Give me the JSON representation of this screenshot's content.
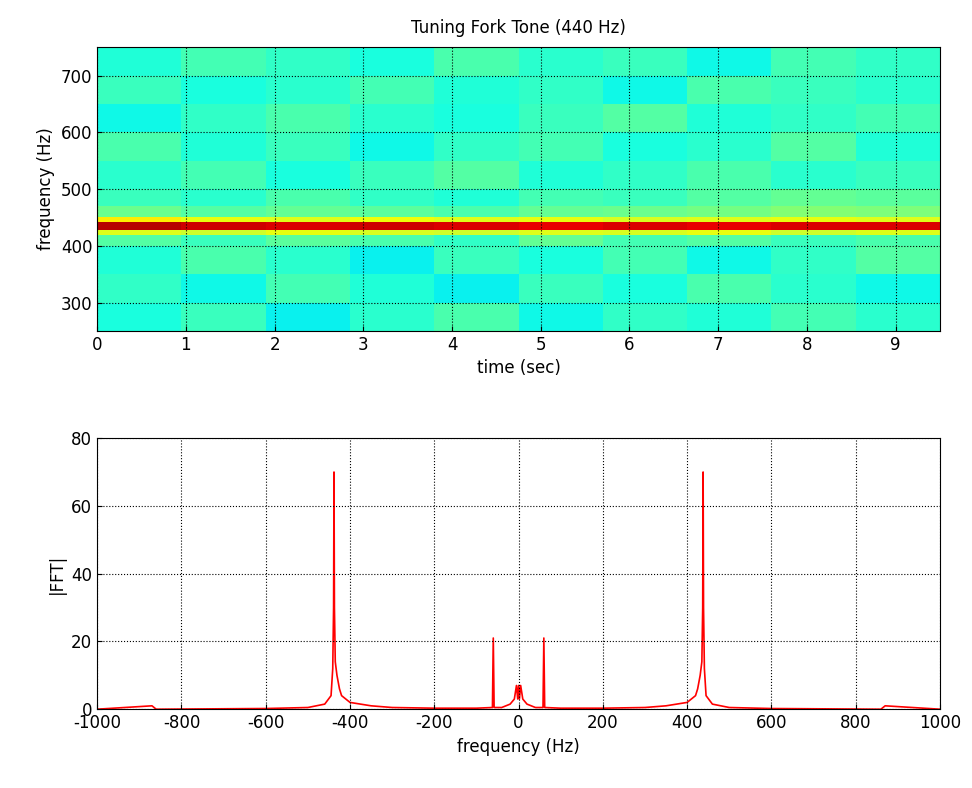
{
  "chart_data": [
    {
      "type": "heatmap",
      "title": "Tuning Fork Tone (440 Hz)",
      "x_label": "time (sec)",
      "y_label": "frequency (Hz)",
      "x_edges": [
        0,
        0.95,
        1.9,
        2.85,
        3.8,
        4.75,
        5.7,
        6.65,
        7.6,
        8.55,
        9.5
      ],
      "y_edges": [
        250,
        300,
        350,
        400,
        420,
        428,
        442,
        450,
        470,
        500,
        550,
        600,
        650,
        700,
        750
      ],
      "cells": [
        [
          38,
          42,
          36,
          40,
          44,
          37,
          41,
          39,
          43,
          40
        ],
        [
          41,
          37,
          43,
          39,
          36,
          42,
          38,
          44,
          40,
          37
        ],
        [
          39,
          44,
          40,
          36,
          42,
          38,
          43,
          37,
          41,
          45
        ],
        [
          45,
          42,
          46,
          44,
          41,
          47,
          43,
          45,
          42,
          44
        ],
        [
          62,
          60,
          63,
          61,
          60,
          62,
          61,
          63,
          60,
          62
        ],
        [
          95,
          93,
          92,
          93,
          92,
          91,
          92,
          91,
          92,
          92
        ],
        [
          66,
          63,
          62,
          64,
          62,
          63,
          61,
          62,
          63,
          62
        ],
        [
          48,
          45,
          47,
          46,
          44,
          47,
          48,
          49,
          51,
          50
        ],
        [
          42,
          40,
          44,
          41,
          39,
          43,
          42,
          45,
          47,
          46
        ],
        [
          40,
          43,
          38,
          42,
          45,
          39,
          41,
          44,
          40,
          42
        ],
        [
          44,
          39,
          42,
          37,
          41,
          43,
          38,
          40,
          45,
          39
        ],
        [
          37,
          41,
          44,
          40,
          38,
          42,
          45,
          39,
          41,
          43
        ],
        [
          42,
          38,
          40,
          43,
          39,
          41,
          37,
          44,
          42,
          40
        ],
        [
          39,
          43,
          41,
          38,
          44,
          40,
          42,
          37,
          43,
          41
        ]
      ],
      "color_range": [
        0,
        100
      ],
      "xlim": [
        0,
        9.5
      ],
      "xticks": [
        0,
        1,
        2,
        3,
        4,
        5,
        6,
        7,
        8,
        9
      ],
      "ylim": [
        250,
        750
      ],
      "yticks": [
        300,
        400,
        500,
        600,
        700
      ],
      "grid": true
    },
    {
      "type": "line",
      "x_label": "frequency (Hz)",
      "y_label": "|FFT|",
      "color": "#ff0000",
      "x": [
        -1000,
        -870,
        -860,
        -600,
        -500,
        -460,
        -445,
        -441,
        -439,
        -438,
        -437,
        -435,
        -431,
        -425,
        -420,
        -400,
        -350,
        -300,
        -200,
        -100,
        -62,
        -60,
        -58,
        -40,
        -20,
        -10,
        -5,
        -2,
        0,
        2,
        5,
        10,
        20,
        40,
        58,
        60,
        62,
        100,
        200,
        300,
        350,
        400,
        420,
        425,
        431,
        435,
        437,
        438,
        439,
        441,
        445,
        460,
        500,
        600,
        860,
        870,
        1000
      ],
      "values": [
        0,
        1,
        0,
        0.2,
        0.5,
        1.5,
        4,
        12,
        30,
        70,
        30,
        14,
        10,
        6,
        4,
        2,
        1,
        0.5,
        0.3,
        0.3,
        0.5,
        21,
        0.5,
        0.5,
        1.5,
        3,
        7,
        3,
        7,
        3,
        7,
        3,
        1.5,
        0.5,
        0.5,
        21,
        0.5,
        0.3,
        0.3,
        0.5,
        1,
        2,
        4,
        6,
        10,
        14,
        30,
        70,
        30,
        12,
        4,
        1.5,
        0.5,
        0.2,
        0,
        1,
        0
      ],
      "xlim": [
        -1000,
        1000
      ],
      "xticks": [
        -1000,
        -800,
        -600,
        -400,
        -200,
        0,
        200,
        400,
        600,
        800,
        1000
      ],
      "ylim": [
        0,
        80
      ],
      "yticks": [
        0,
        20,
        40,
        60,
        80
      ],
      "grid": true
    }
  ]
}
